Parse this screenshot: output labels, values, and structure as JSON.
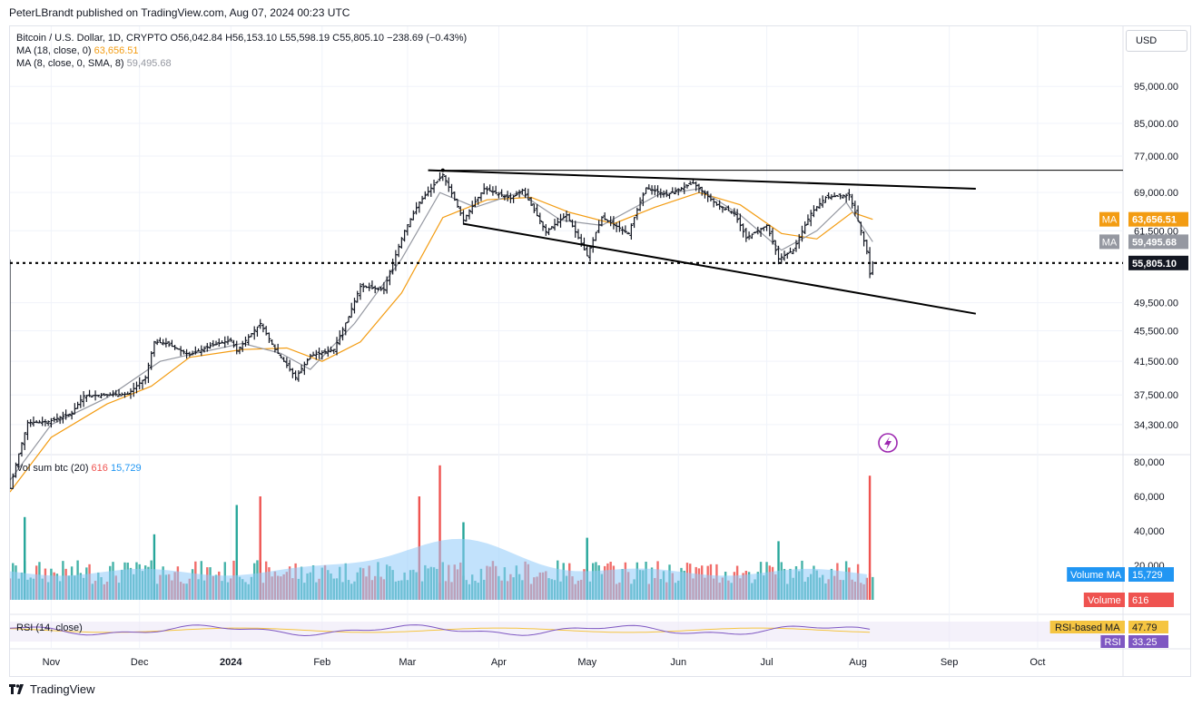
{
  "header": {
    "publisher_line": "PeterLBrandt published on TradingView.com, Aug 07, 2024 00:23 UTC"
  },
  "legend": {
    "symbol": "Bitcoin / U.S. Dollar, 1D, CRYPTO",
    "ohlc": "O56,042.84 H56,153.10 L55,598.19 C55,805.10",
    "change": "−238.69 (−0.43%)",
    "ma18_label": "MA (18, close, 0)",
    "ma18_value": "63,656.51",
    "ma8_label": "MA (8, close, 0, SMA, 8)",
    "ma8_value": "59,495.68",
    "vol_label": "Vol sum btc (20)",
    "vol_value": "616",
    "vol_ma_value": "15,729",
    "rsi_label": "RSI (14, close)"
  },
  "currency": "USD",
  "footer": {
    "brand": "TradingView"
  },
  "colors": {
    "candle": "#131722",
    "ma18": "#f39c12",
    "ma8": "#9598a1",
    "vol_up": "#26a69a",
    "vol_down": "#ef5350",
    "vol_ma_fill": "#90caf9",
    "rsi": "#7e57c2",
    "rsi_ma": "#f5c542"
  },
  "chart_data": {
    "type": "ohlc",
    "y_axis_labels": [
      "95,000.00",
      "85,000.00",
      "77,000.00",
      "69,000.00",
      "61,500.00",
      "49,500.00",
      "45,500.00",
      "41,500.00",
      "37,500.00",
      "34,300.00"
    ],
    "y_scale": "log",
    "ylim": [
      31500,
      112000
    ],
    "x_axis_labels": [
      "Nov",
      "Dec",
      "2024",
      "Feb",
      "Mar",
      "Apr",
      "May",
      "Jun",
      "Jul",
      "Aug",
      "Sep",
      "Oct"
    ],
    "x_range": [
      "2023-10-18",
      "2024-10-30"
    ],
    "price_series": [
      [
        "2023-10-18",
        28300
      ],
      [
        "2023-10-24",
        34500
      ],
      [
        "2023-10-31",
        34600
      ],
      [
        "2023-11-08",
        35500
      ],
      [
        "2023-11-12",
        37400
      ],
      [
        "2023-11-20",
        37500
      ],
      [
        "2023-11-27",
        37600
      ],
      [
        "2023-12-03",
        39500
      ],
      [
        "2023-12-06",
        44000
      ],
      [
        "2023-12-10",
        43800
      ],
      [
        "2023-12-18",
        42300
      ],
      [
        "2023-12-25",
        43500
      ],
      [
        "2024-01-01",
        44200
      ],
      [
        "2024-01-03",
        42800
      ],
      [
        "2024-01-11",
        46500
      ],
      [
        "2024-01-16",
        43000
      ],
      [
        "2024-01-23",
        39500
      ],
      [
        "2024-01-28",
        42200
      ],
      [
        "2024-02-05",
        43000
      ],
      [
        "2024-02-10",
        47500
      ],
      [
        "2024-02-14",
        52000
      ],
      [
        "2024-02-22",
        51500
      ],
      [
        "2024-02-29",
        61500
      ],
      [
        "2024-03-05",
        67000
      ],
      [
        "2024-03-13",
        72800
      ],
      [
        "2024-03-20",
        63500
      ],
      [
        "2024-03-27",
        69800
      ],
      [
        "2024-04-05",
        67800
      ],
      [
        "2024-04-09",
        69500
      ],
      [
        "2024-04-17",
        61300
      ],
      [
        "2024-04-24",
        64500
      ],
      [
        "2024-05-01",
        57000
      ],
      [
        "2024-05-06",
        64000
      ],
      [
        "2024-05-15",
        61000
      ],
      [
        "2024-05-21",
        70000
      ],
      [
        "2024-05-28",
        68500
      ],
      [
        "2024-06-06",
        71000
      ],
      [
        "2024-06-14",
        66500
      ],
      [
        "2024-06-20",
        64800
      ],
      [
        "2024-06-24",
        60200
      ],
      [
        "2024-07-01",
        62500
      ],
      [
        "2024-07-05",
        56500
      ],
      [
        "2024-07-10",
        58000
      ],
      [
        "2024-07-16",
        64800
      ],
      [
        "2024-07-21",
        68000
      ],
      [
        "2024-07-29",
        68500
      ],
      [
        "2024-08-02",
        61500
      ],
      [
        "2024-08-04",
        57800
      ],
      [
        "2024-08-05",
        54000
      ],
      [
        "2024-08-06",
        55805
      ]
    ],
    "ma18_series": [
      [
        "2023-10-18",
        28000
      ],
      [
        "2023-11-01",
        33000
      ],
      [
        "2023-11-20",
        36500
      ],
      [
        "2023-12-05",
        38500
      ],
      [
        "2023-12-18",
        42000
      ],
      [
        "2024-01-05",
        43000
      ],
      [
        "2024-01-20",
        43200
      ],
      [
        "2024-02-01",
        41500
      ],
      [
        "2024-02-14",
        44000
      ],
      [
        "2024-02-28",
        51000
      ],
      [
        "2024-03-13",
        64000
      ],
      [
        "2024-03-28",
        67500
      ],
      [
        "2024-04-12",
        68000
      ],
      [
        "2024-04-25",
        65000
      ],
      [
        "2024-05-10",
        62800
      ],
      [
        "2024-05-24",
        66000
      ],
      [
        "2024-06-08",
        69000
      ],
      [
        "2024-06-22",
        66500
      ],
      [
        "2024-07-06",
        61000
      ],
      [
        "2024-07-18",
        60000
      ],
      [
        "2024-07-30",
        65000
      ],
      [
        "2024-08-06",
        63656
      ]
    ],
    "ma8_series": [
      [
        "2023-10-18",
        29000
      ],
      [
        "2023-11-01",
        34300
      ],
      [
        "2023-11-20",
        37200
      ],
      [
        "2023-12-08",
        41500
      ],
      [
        "2023-12-20",
        42500
      ],
      [
        "2024-01-05",
        43800
      ],
      [
        "2024-01-18",
        42500
      ],
      [
        "2024-01-28",
        40500
      ],
      [
        "2024-02-12",
        46500
      ],
      [
        "2024-02-28",
        56500
      ],
      [
        "2024-03-12",
        69000
      ],
      [
        "2024-03-24",
        66000
      ],
      [
        "2024-04-08",
        69000
      ],
      [
        "2024-04-22",
        63500
      ],
      [
        "2024-05-06",
        62500
      ],
      [
        "2024-05-25",
        68500
      ],
      [
        "2024-06-08",
        69800
      ],
      [
        "2024-06-22",
        64500
      ],
      [
        "2024-07-06",
        58000
      ],
      [
        "2024-07-18",
        61500
      ],
      [
        "2024-07-28",
        67000
      ],
      [
        "2024-08-06",
        59495
      ]
    ],
    "trendlines": [
      {
        "start": [
          "2024-03-08",
          73800
        ],
        "end": [
          "2024-09-10",
          69800
        ]
      },
      {
        "start": [
          "2024-03-20",
          62800
        ],
        "end": [
          "2024-09-10",
          47900
        ]
      },
      {
        "start": [
          "2024-03-13",
          73800
        ],
        "end": [
          "2024-10-30",
          73800
        ]
      },
      {
        "start": [
          "2023-10-18",
          55805
        ],
        "end": [
          "2024-10-30",
          55805
        ]
      }
    ],
    "price_tags": [
      {
        "label": "MA",
        "value": 63656.51,
        "text": "63,656.51",
        "color": "#f39c12"
      },
      {
        "label": "MA",
        "value": 59495.68,
        "text": "59,495.68",
        "color": "#9598a1"
      },
      {
        "label": "",
        "value": 55805.1,
        "text": "55,805.10",
        "color": "#131722"
      }
    ],
    "volume": {
      "axis_labels": [
        "80,000",
        "60,000",
        "40,000",
        "20,000"
      ],
      "ylim": [
        0,
        80000
      ],
      "spikes": [
        [
          "2023-10-23",
          48000
        ],
        [
          "2023-12-06",
          38000
        ],
        [
          "2024-01-11",
          60000
        ],
        [
          "2024-01-03",
          55000
        ],
        [
          "2024-03-05",
          60000
        ],
        [
          "2024-03-12",
          78000
        ],
        [
          "2024-03-20",
          45000
        ],
        [
          "2024-05-01",
          36000
        ],
        [
          "2024-07-05",
          34000
        ],
        [
          "2024-08-05",
          72000
        ]
      ],
      "ma_value": 15729,
      "tags": [
        {
          "label": "Volume MA",
          "text": "15,729",
          "color": "#2196f3"
        },
        {
          "label": "Volume",
          "text": "616",
          "color": "#ef5350"
        }
      ]
    },
    "rsi": {
      "tags": [
        {
          "label": "RSI-based MA",
          "text": "47.79",
          "color": "#f5c542"
        },
        {
          "label": "RSI",
          "text": "33.25",
          "color": "#7e57c2"
        }
      ]
    }
  }
}
